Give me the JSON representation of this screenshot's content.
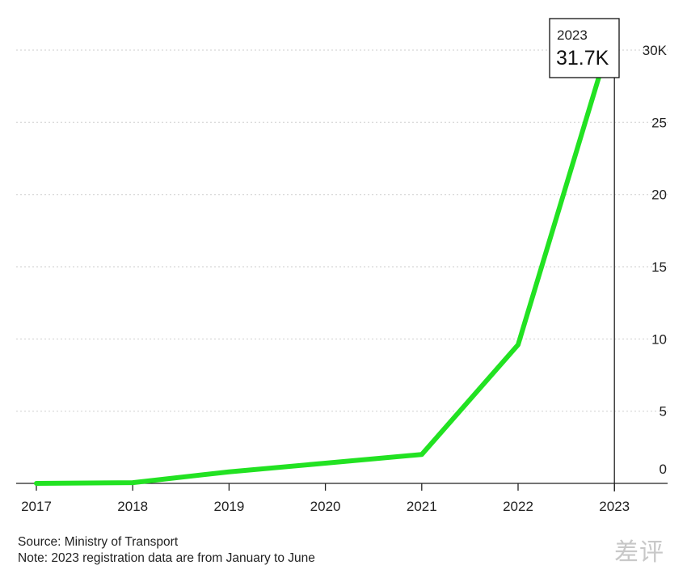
{
  "chart_data": {
    "type": "line",
    "x": [
      "2017",
      "2018",
      "2019",
      "2020",
      "2021",
      "2022",
      "2023"
    ],
    "series": [
      {
        "values": [
          0.0,
          0.05,
          0.8,
          1.4,
          2.0,
          9.6,
          31.7
        ]
      }
    ],
    "y_ticks": [
      {
        "value": 0,
        "label": "0"
      },
      {
        "value": 5,
        "label": "5"
      },
      {
        "value": 10,
        "label": "10"
      },
      {
        "value": 15,
        "label": "15"
      },
      {
        "value": 20,
        "label": "20"
      },
      {
        "value": 25,
        "label": "25"
      },
      {
        "value": 30,
        "label": "30K"
      }
    ],
    "ylim": [
      0,
      30
    ],
    "grid": true,
    "y_axis_position": "right",
    "callout": {
      "year": "2023",
      "value": "31.7K"
    },
    "line_color": "#22e222"
  },
  "footer": {
    "source": "Source: Ministry of Transport",
    "note": "Note: 2023 registration data are from January to June"
  },
  "watermark": "差评"
}
